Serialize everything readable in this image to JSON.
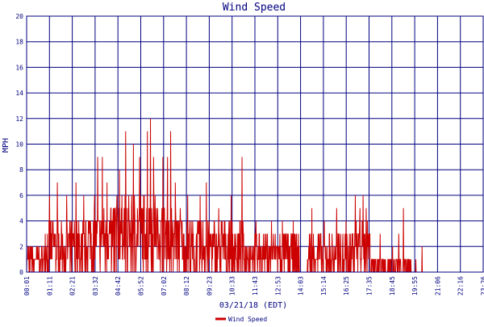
{
  "chart_data": {
    "type": "line",
    "title": "Wind Speed",
    "xlabel": "03/21/18 (EDT)",
    "ylabel": "MPH",
    "ylim": [
      0,
      20
    ],
    "y_ticks": [
      0,
      2,
      4,
      6,
      8,
      10,
      12,
      14,
      16,
      18,
      20
    ],
    "x_range_minutes": [
      1,
      1472
    ],
    "x_tick_labels": [
      "00:01",
      "01:11",
      "02:21",
      "03:32",
      "04:42",
      "05:52",
      "07:02",
      "08:12",
      "09:23",
      "10:33",
      "11:43",
      "12:53",
      "14:03",
      "15:14",
      "16:25",
      "17:35",
      "18:45",
      "19:55",
      "21:06",
      "22:16",
      "23:26"
    ],
    "grid": true,
    "legend_position": "bottom-center",
    "colors": {
      "series": "#cc0000",
      "grid": "#000080",
      "text": "#000080",
      "background": "#ffffff"
    },
    "series": [
      {
        "name": "Wind Speed",
        "x_unit": "minutes after midnight (03/21/18)",
        "segments": [
          {
            "x_start": 1,
            "x_end": 60,
            "low": 0,
            "high": 2,
            "peaks": [
              {
                "x": 45,
                "y": 1
              }
            ]
          },
          {
            "x_start": 60,
            "x_end": 200,
            "low": 0,
            "high": 4,
            "peaks": [
              {
                "x": 75,
                "y": 6
              },
              {
                "x": 100,
                "y": 7
              },
              {
                "x": 130,
                "y": 6
              },
              {
                "x": 160,
                "y": 7
              },
              {
                "x": 185,
                "y": 6
              }
            ]
          },
          {
            "x_start": 200,
            "x_end": 280,
            "low": 1,
            "high": 5,
            "peaks": [
              {
                "x": 220,
                "y": 6
              },
              {
                "x": 230,
                "y": 9
              },
              {
                "x": 245,
                "y": 9
              },
              {
                "x": 260,
                "y": 7
              }
            ]
          },
          {
            "x_start": 280,
            "x_end": 420,
            "low": 1,
            "high": 6,
            "peaks": [
              {
                "x": 300,
                "y": 8
              },
              {
                "x": 320,
                "y": 11
              },
              {
                "x": 345,
                "y": 10
              },
              {
                "x": 365,
                "y": 9
              },
              {
                "x": 390,
                "y": 11
              },
              {
                "x": 400,
                "y": 12
              },
              {
                "x": 410,
                "y": 9
              }
            ]
          },
          {
            "x_start": 420,
            "x_end": 500,
            "low": 1,
            "high": 5,
            "peaks": [
              {
                "x": 440,
                "y": 9
              },
              {
                "x": 455,
                "y": 9
              },
              {
                "x": 465,
                "y": 11
              },
              {
                "x": 480,
                "y": 7
              }
            ]
          },
          {
            "x_start": 500,
            "x_end": 700,
            "low": 0,
            "high": 4,
            "peaks": [
              {
                "x": 520,
                "y": 6
              },
              {
                "x": 560,
                "y": 6
              },
              {
                "x": 580,
                "y": 7
              },
              {
                "x": 620,
                "y": 5
              },
              {
                "x": 660,
                "y": 6
              },
              {
                "x": 695,
                "y": 9
              }
            ]
          },
          {
            "x_start": 700,
            "x_end": 880,
            "low": 0,
            "high": 3,
            "peaks": [
              {
                "x": 740,
                "y": 4
              },
              {
                "x": 790,
                "y": 4
              },
              {
                "x": 825,
                "y": 4
              },
              {
                "x": 860,
                "y": 4
              }
            ]
          },
          {
            "x_start": 880,
            "x_end": 905,
            "low": 0,
            "high": 0,
            "peaks": []
          },
          {
            "x_start": 905,
            "x_end": 1040,
            "low": 0,
            "high": 3,
            "peaks": [
              {
                "x": 920,
                "y": 5
              },
              {
                "x": 960,
                "y": 4
              },
              {
                "x": 1000,
                "y": 5
              },
              {
                "x": 1030,
                "y": 4
              }
            ]
          },
          {
            "x_start": 1040,
            "x_end": 1110,
            "low": 0,
            "high": 4,
            "peaks": [
              {
                "x": 1060,
                "y": 6
              },
              {
                "x": 1075,
                "y": 5
              },
              {
                "x": 1085,
                "y": 6
              },
              {
                "x": 1095,
                "y": 5
              }
            ]
          },
          {
            "x_start": 1110,
            "x_end": 1240,
            "low": 0,
            "high": 1,
            "peaks": [
              {
                "x": 1140,
                "y": 3
              },
              {
                "x": 1180,
                "y": 2
              },
              {
                "x": 1200,
                "y": 3
              },
              {
                "x": 1215,
                "y": 5
              }
            ]
          },
          {
            "x_start": 1240,
            "x_end": 1290,
            "low": 0,
            "high": 0,
            "peaks": [
              {
                "x": 1255,
                "y": 1
              },
              {
                "x": 1275,
                "y": 2
              }
            ]
          },
          {
            "x_start": 1290,
            "x_end": 1472,
            "low": 0,
            "high": 0,
            "peaks": []
          }
        ]
      }
    ]
  }
}
